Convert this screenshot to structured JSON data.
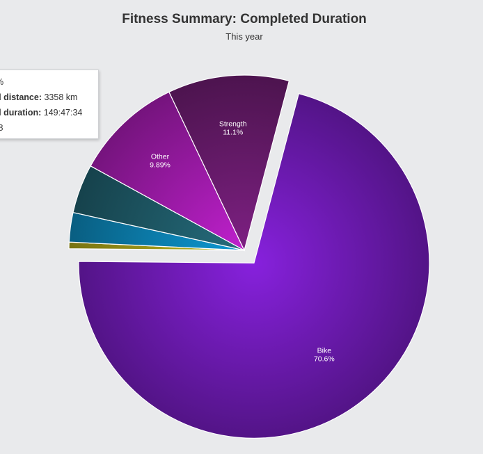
{
  "chart_data": {
    "type": "pie",
    "title": "Fitness Summary: Completed Duration",
    "subtitle": "This year",
    "slices": [
      {
        "name": "Bike",
        "label": "70.6%",
        "value": 70.6,
        "color": "#7d1fcd",
        "exploded": true
      },
      {
        "name": "",
        "label": "",
        "value": 0.6,
        "color": "#b5ac1c"
      },
      {
        "name": "",
        "label": "",
        "value": 2.7,
        "color": "#0d8fc4"
      },
      {
        "name": "",
        "label": "",
        "value": 4.5,
        "color": "#226473"
      },
      {
        "name": "Other",
        "label": "9.89%",
        "value": 9.89,
        "color": "#b11ebe"
      },
      {
        "name": "Strength",
        "label": "11.1%",
        "value": 11.1,
        "color": "#741e78"
      }
    ],
    "tooltip": {
      "line1": "%",
      "line2_key": "d distance:",
      "line2_value": " 3358 km",
      "line3_key": "d duration:",
      "line3_value": " 149:47:34",
      "line4": ".8"
    }
  }
}
